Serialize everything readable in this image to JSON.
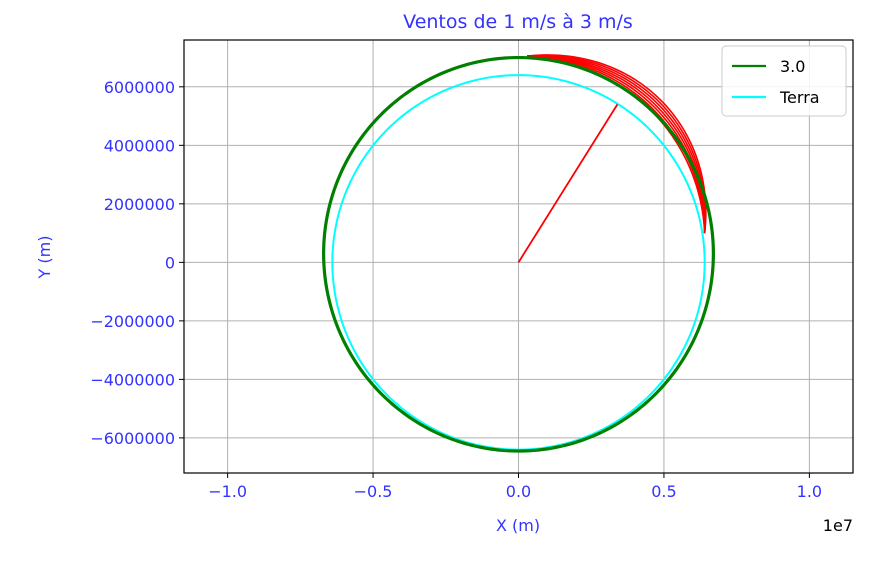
{
  "chart_data": {
    "type": "line",
    "title": "Ventos de 1 m/s à 3 m/s",
    "xlabel": "X (m)",
    "ylabel": "Y (m)",
    "x_offset_label": "1e7",
    "xlim": [
      -11500000,
      11500000
    ],
    "ylim": [
      -7200000,
      7600000
    ],
    "xticks": [
      -10000000,
      -5000000,
      0,
      5000000,
      10000000
    ],
    "xtick_labels": [
      "−1.0",
      "−0.5",
      "0.0",
      "0.5",
      "1.0"
    ],
    "yticks": [
      -6000000,
      -4000000,
      -2000000,
      0,
      2000000,
      4000000,
      6000000
    ],
    "ytick_labels": [
      "−6000000",
      "−4000000",
      "−2000000",
      "0",
      "2000000",
      "4000000",
      "6000000"
    ],
    "grid": true,
    "legend_position": "top-right",
    "series": [
      {
        "name": "3.0",
        "color": "#008000",
        "kind": "orbit",
        "radius_x": 6700000,
        "center_y": 300000,
        "radius_top": 6700000,
        "radius_bottom": 6750000
      },
      {
        "name": "Terra",
        "color": "#00ffff",
        "kind": "circle",
        "center": [
          0,
          0
        ],
        "radius": 6400000
      },
      {
        "name": "",
        "color": "#ff0000",
        "kind": "segment",
        "points": [
          [
            0,
            0
          ],
          [
            3400000,
            5400000
          ]
        ]
      },
      {
        "name": "",
        "color": "#ff0000",
        "kind": "arc-bundle",
        "start": [
          300000,
          7050000
        ],
        "end": [
          6400000,
          1000000
        ]
      }
    ],
    "legend": [
      {
        "label": "3.0",
        "color": "#008000"
      },
      {
        "label": "Terra",
        "color": "#00ffff"
      }
    ]
  }
}
